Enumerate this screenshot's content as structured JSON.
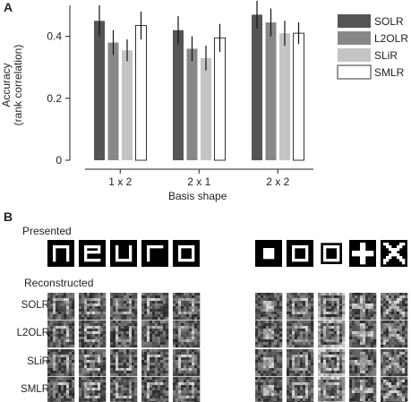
{
  "panel_a_letter": "A",
  "panel_b_letter": "B",
  "chart_data": {
    "type": "bar",
    "title": "",
    "xlabel": "Basis shape",
    "ylabel": "Accuracy\n(rank correlation)",
    "ylabel_lines": [
      "Accuracy",
      "(rank correlation)"
    ],
    "ylim": [
      0,
      0.5
    ],
    "yticks": [
      0,
      0.2,
      0.4
    ],
    "ytick_labels": [
      "0",
      "0.2",
      "0.4"
    ],
    "categories": [
      "1 x 2",
      "2 x 1",
      "2 x 2"
    ],
    "series": [
      {
        "name": "SOLR",
        "color": "#555555",
        "values": [
          0.45,
          0.42,
          0.47
        ],
        "errors": [
          0.05,
          0.045,
          0.045
        ]
      },
      {
        "name": "L2OLR",
        "color": "#888888",
        "values": [
          0.38,
          0.36,
          0.445
        ],
        "errors": [
          0.04,
          0.04,
          0.045
        ]
      },
      {
        "name": "SLiR",
        "color": "#c4c4c4",
        "values": [
          0.355,
          0.33,
          0.41
        ],
        "errors": [
          0.035,
          0.04,
          0.04
        ]
      },
      {
        "name": "SMLR",
        "color": "#ffffff",
        "values": [
          0.435,
          0.395,
          0.41
        ],
        "errors": [
          0.045,
          0.045,
          0.035
        ]
      }
    ],
    "legend_position": "top-right",
    "grid": false
  },
  "panel_b": {
    "presented_label": "Presented",
    "reconstructed_label": "Reconstructed",
    "row_labels": [
      "SOLR",
      "L2OLR",
      "SLiR",
      "SMLR"
    ],
    "letters": [
      "n",
      "e",
      "u",
      "r",
      "o"
    ],
    "shapes": [
      "square",
      "small-frame",
      "large-frame",
      "plus",
      "x"
    ]
  }
}
